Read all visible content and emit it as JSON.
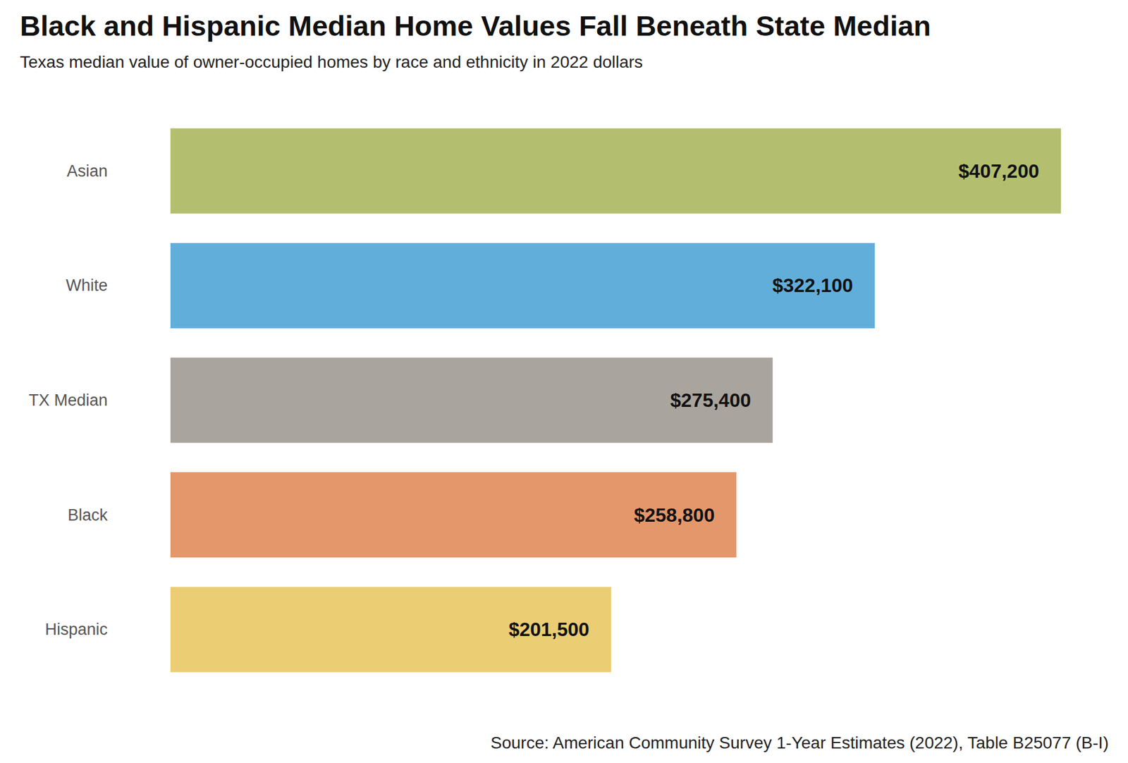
{
  "chart_data": {
    "type": "bar",
    "title": "Black and Hispanic Median Home Values Fall Beneath State Median",
    "subtitle": "Texas median value of owner-occupied homes by race and ethnicity in 2022 dollars",
    "source": "Source: American Community Survey 1-Year Estimates (2022), Table B25077 (B-I)",
    "categories": [
      "Asian",
      "White",
      "TX Median",
      "Black",
      "Hispanic"
    ],
    "values": [
      407200,
      322100,
      275400,
      258800,
      201500
    ],
    "value_labels": [
      "$407,200",
      "$322,100",
      "$275,400",
      "$258,800",
      "$201,500"
    ],
    "colors": [
      "#b3bf6f",
      "#62aedb",
      "#a9a59e",
      "#e4976a",
      "#ebcd73"
    ],
    "orientation": "horizontal",
    "data_labels": true,
    "tick_labels": "y",
    "grid": false
  }
}
